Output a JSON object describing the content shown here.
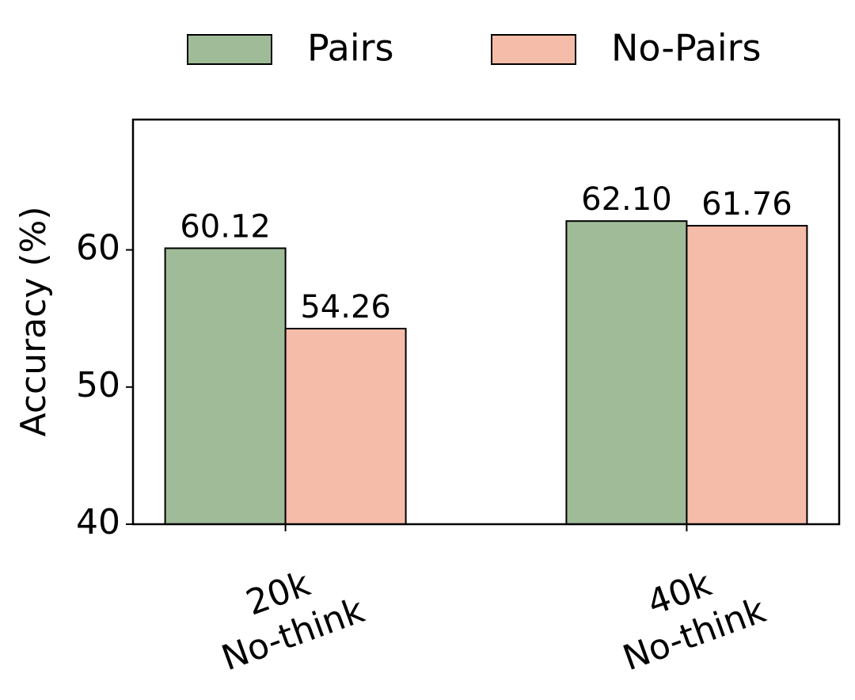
{
  "chart_data": {
    "type": "bar",
    "y_label": "Accuracy (%)",
    "categories": [
      "20k\nNo-think",
      "40k\nNo-think"
    ],
    "series": [
      {
        "name": "Pairs",
        "color": "#a0bb98",
        "values": [
          60.12,
          62.1
        ],
        "value_labels": [
          "60.12",
          "62.10"
        ]
      },
      {
        "name": "No-Pairs",
        "color": "#f5bca9",
        "values": [
          54.26,
          61.76
        ],
        "value_labels": [
          "54.26",
          "61.76"
        ]
      }
    ],
    "ylim": [
      40,
      69.5
    ],
    "yticks": [
      40,
      50,
      60
    ],
    "grid": false,
    "legend": "top"
  }
}
